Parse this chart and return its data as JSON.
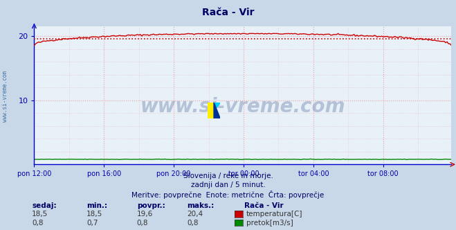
{
  "title": "Rača - Vir",
  "bg_color": "#c8d8e8",
  "plot_bg_color": "#e8f0f8",
  "grid_color": "#e8a0a0",
  "xlabel_ticks": [
    "pon 12:00",
    "pon 16:00",
    "pon 20:00",
    "tor 00:00",
    "tor 04:00",
    "tor 08:00"
  ],
  "xlim": [
    0,
    287
  ],
  "ylim": [
    0,
    21.5
  ],
  "yticks": [
    10,
    20
  ],
  "temp_color": "#cc0000",
  "flow_color": "#008800",
  "avg_color": "#cc0000",
  "avg_value": 19.6,
  "temp_min": 18.5,
  "temp_max": 20.4,
  "flow_val": 0.8,
  "subtitle1": "Slovenija / reke in morje.",
  "subtitle2": "zadnji dan / 5 minut.",
  "subtitle3": "Meritve: povprečne  Enote: metrične  Črta: povprečje",
  "legend_station": "Rača - Vir",
  "legend_temp": "temperatura[C]",
  "legend_flow": "pretok[m3/s]",
  "table_headers": [
    "sedaj:",
    "min.:",
    "povpr.:",
    "maks.:"
  ],
  "table_row1": [
    "18,5",
    "18,5",
    "19,6",
    "20,4"
  ],
  "table_row2": [
    "0,8",
    "0,7",
    "0,8",
    "0,8"
  ],
  "watermark": "www.si-vreme.com",
  "watermark_color": "#1a3a7a",
  "watermark_alpha": 0.25,
  "left_label": "www.si-vreme.com",
  "left_label_color": "#336699",
  "axis_color": "#0000cc",
  "tick_color": "#0000aa",
  "text_color": "#000066"
}
